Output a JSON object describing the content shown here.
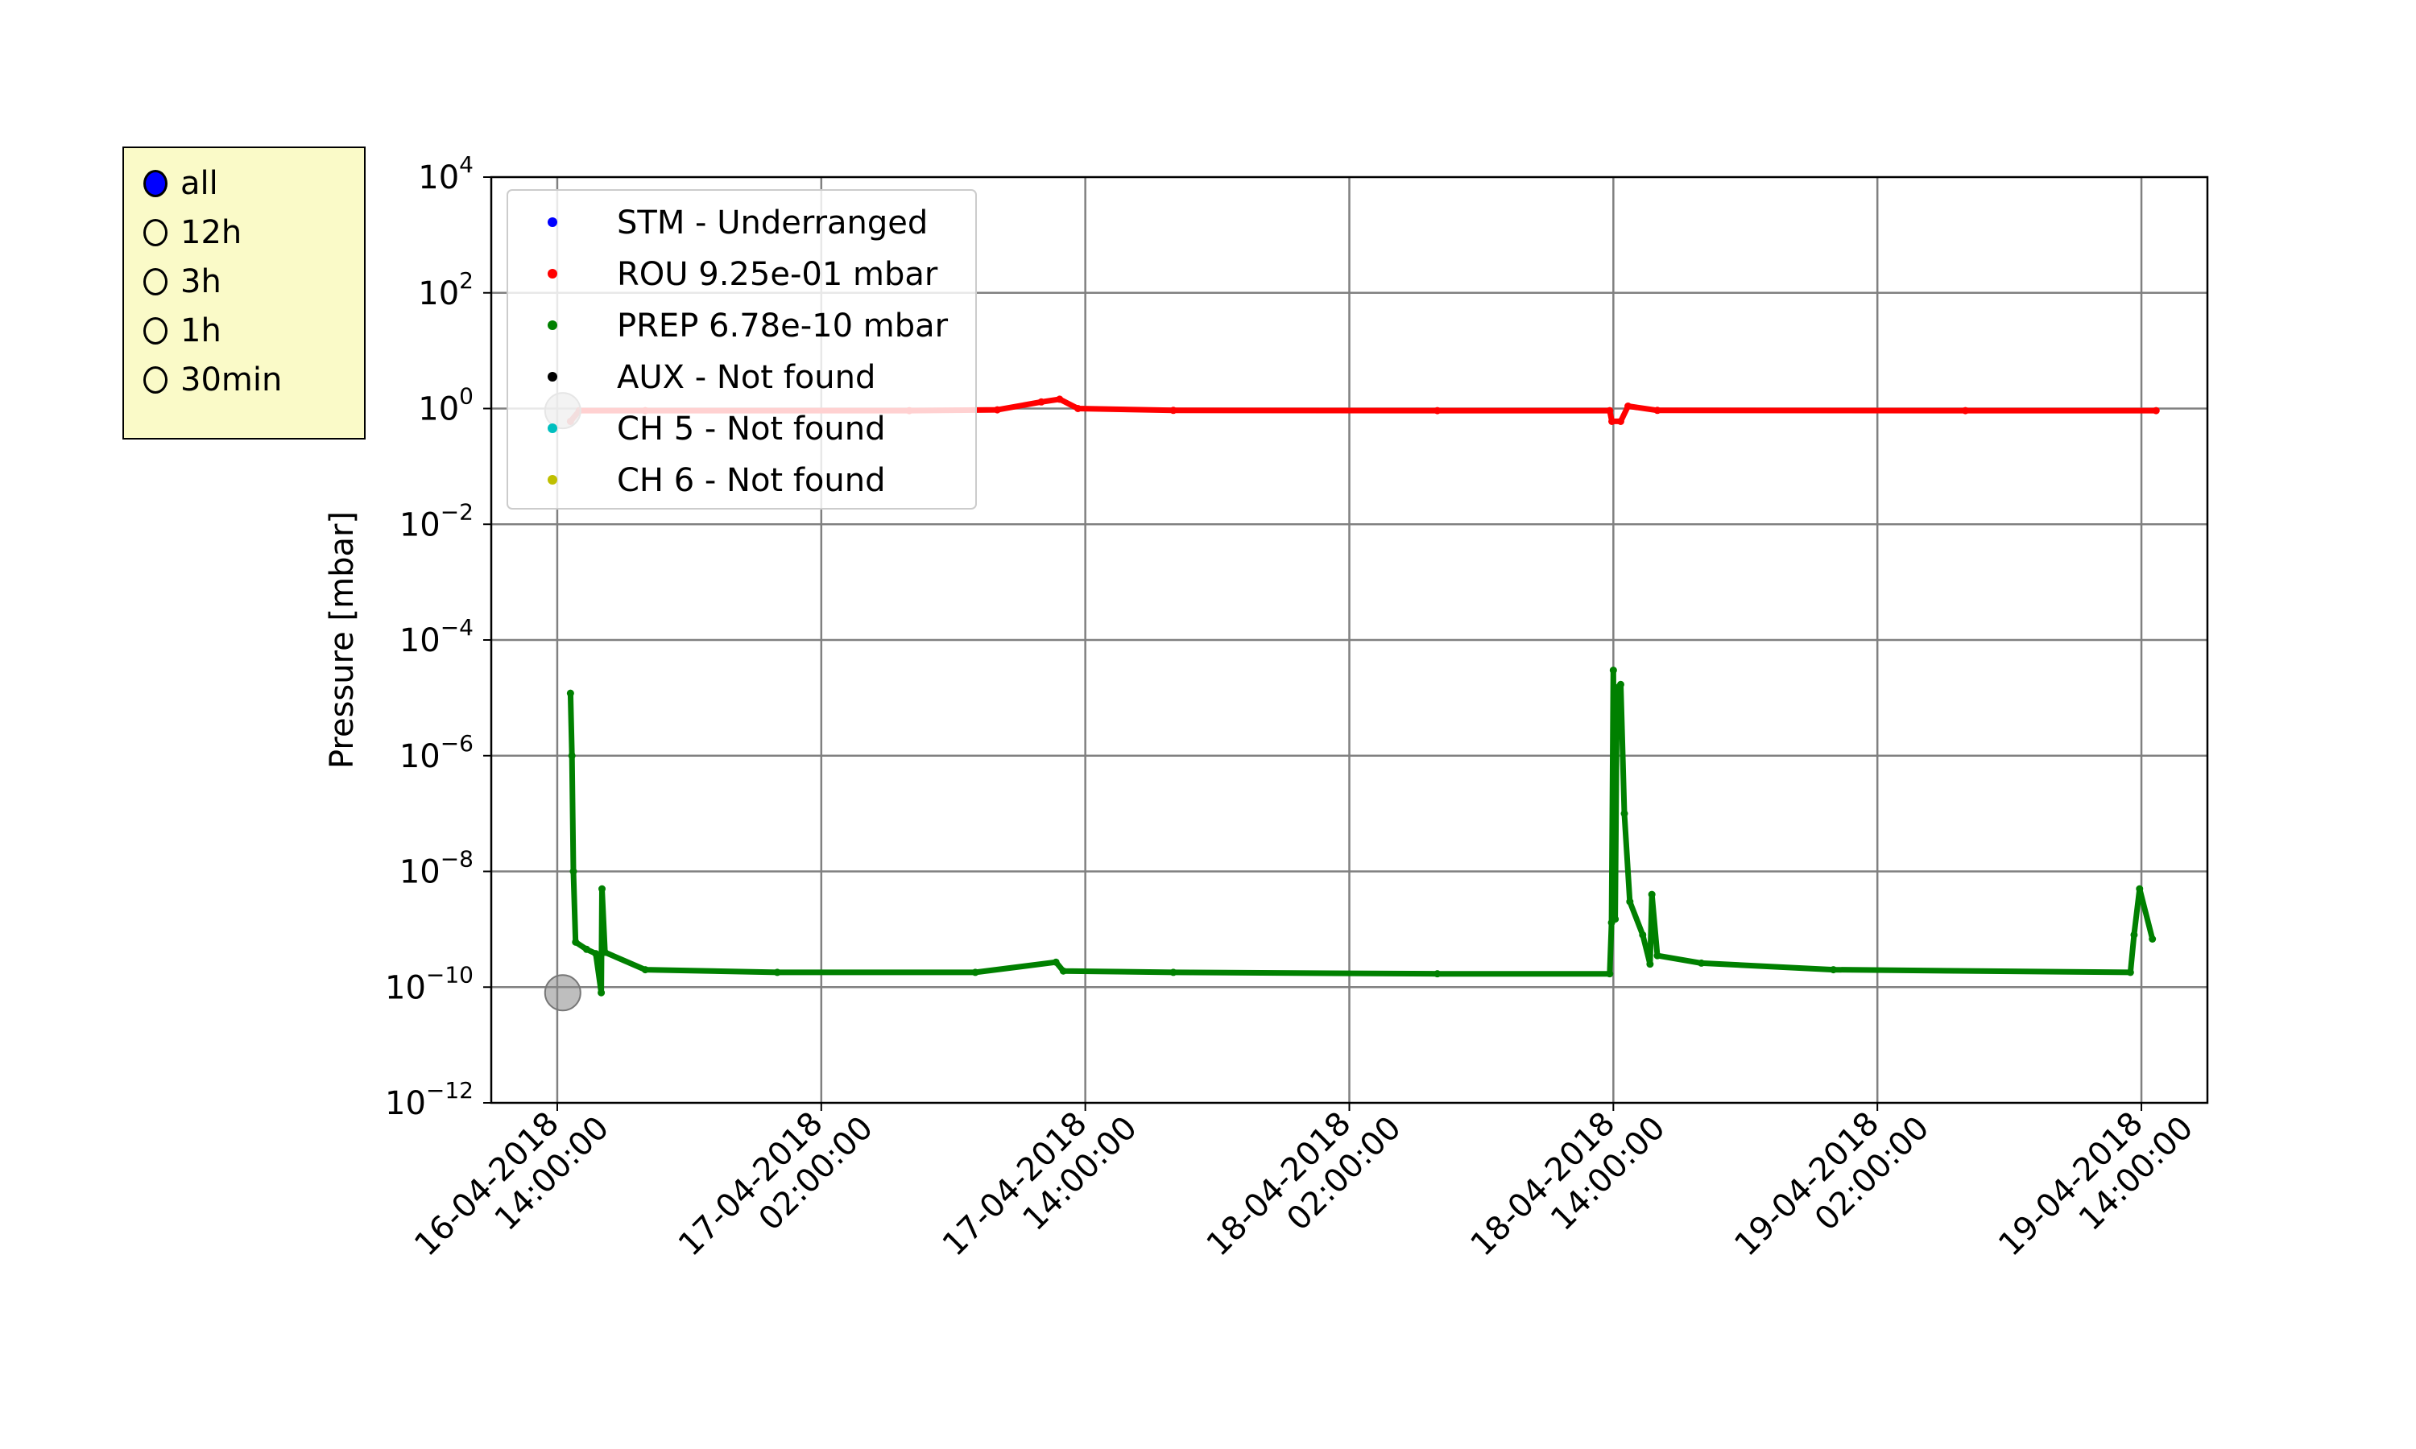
{
  "radio": {
    "options": [
      "all",
      "12h",
      "3h",
      "1h",
      "30min"
    ],
    "selected_index": 0,
    "selected_color": "#0000ff"
  },
  "chart_data": {
    "type": "scatter",
    "ylabel": "Pressure [mbar]",
    "yscale": "log",
    "ylim_exponents": [
      -12,
      4
    ],
    "ytick_exponents": [
      -12,
      -10,
      -8,
      -6,
      -4,
      -2,
      0,
      2,
      4
    ],
    "xlim": [
      "2018-04-16 11:00",
      "2018-04-19 17:00"
    ],
    "xticks": [
      {
        "value": "2018-04-16 14:00",
        "date": "16-04-2018",
        "time": "14:00:00"
      },
      {
        "value": "2018-04-17 02:00",
        "date": "17-04-2018",
        "time": "02:00:00"
      },
      {
        "value": "2018-04-17 14:00",
        "date": "17-04-2018",
        "time": "14:00:00"
      },
      {
        "value": "2018-04-18 02:00",
        "date": "18-04-2018",
        "time": "02:00:00"
      },
      {
        "value": "2018-04-18 14:00",
        "date": "18-04-2018",
        "time": "14:00:00"
      },
      {
        "value": "2018-04-19 02:00",
        "date": "19-04-2018",
        "time": "02:00:00"
      },
      {
        "value": "2018-04-19 14:00",
        "date": "19-04-2018",
        "time": "14:00:00"
      }
    ],
    "grid": true,
    "legend_position": "top-left",
    "series": [
      {
        "name": "STM  - Underranged",
        "color": "#0000ff",
        "points": []
      },
      {
        "name": "ROU  9.25e-01 mbar",
        "color": "#ff0000",
        "points": [
          [
            "2018-04-16 14:36",
            0.6
          ],
          [
            "2018-04-16 15:00",
            0.92
          ],
          [
            "2018-04-16 18:00",
            0.92
          ],
          [
            "2018-04-17 06:00",
            0.92
          ],
          [
            "2018-04-17 10:00",
            0.95
          ],
          [
            "2018-04-17 12:00",
            1.3
          ],
          [
            "2018-04-17 12:50",
            1.45
          ],
          [
            "2018-04-17 13:40",
            1.0
          ],
          [
            "2018-04-17 18:00",
            0.93
          ],
          [
            "2018-04-18 06:00",
            0.92
          ],
          [
            "2018-04-18 13:50",
            0.92
          ],
          [
            "2018-04-18 13:56",
            0.6
          ],
          [
            "2018-04-18 14:20",
            0.6
          ],
          [
            "2018-04-18 14:40",
            1.1
          ],
          [
            "2018-04-18 16:00",
            0.93
          ],
          [
            "2018-04-19 06:00",
            0.92
          ],
          [
            "2018-04-19 14:40",
            0.92
          ]
        ]
      },
      {
        "name": "PREP 6.78e-10 mbar",
        "color": "#008000",
        "points": [
          [
            "2018-04-16 14:36",
            1.2e-05
          ],
          [
            "2018-04-16 14:40",
            1e-06
          ],
          [
            "2018-04-16 14:44",
            1e-08
          ],
          [
            "2018-04-16 14:50",
            6e-10
          ],
          [
            "2018-04-16 15:20",
            4.5e-10
          ],
          [
            "2018-04-16 15:45",
            3.8e-10
          ],
          [
            "2018-04-16 16:00",
            8e-11
          ],
          [
            "2018-04-16 16:02",
            5e-09
          ],
          [
            "2018-04-16 16:10",
            4e-10
          ],
          [
            "2018-04-16 18:00",
            2e-10
          ],
          [
            "2018-04-17 00:00",
            1.8e-10
          ],
          [
            "2018-04-17 09:00",
            1.8e-10
          ],
          [
            "2018-04-17 12:40",
            2.7e-10
          ],
          [
            "2018-04-17 13:00",
            1.9e-10
          ],
          [
            "2018-04-17 18:00",
            1.8e-10
          ],
          [
            "2018-04-18 06:00",
            1.7e-10
          ],
          [
            "2018-04-18 13:50",
            1.7e-10
          ],
          [
            "2018-04-18 13:55",
            1.3e-09
          ],
          [
            "2018-04-18 14:00",
            3e-05
          ],
          [
            "2018-04-18 14:05",
            1.5e-09
          ],
          [
            "2018-04-18 14:10",
            1.5e-05
          ],
          [
            "2018-04-18 14:20",
            1.7e-05
          ],
          [
            "2018-04-18 14:30",
            1e-07
          ],
          [
            "2018-04-18 14:45",
            3e-09
          ],
          [
            "2018-04-18 15:20",
            8e-10
          ],
          [
            "2018-04-18 15:40",
            2.5e-10
          ],
          [
            "2018-04-18 15:45",
            4e-09
          ],
          [
            "2018-04-18 16:00",
            3.5e-10
          ],
          [
            "2018-04-18 18:00",
            2.6e-10
          ],
          [
            "2018-04-19 00:00",
            2e-10
          ],
          [
            "2018-04-19 13:30",
            1.8e-10
          ],
          [
            "2018-04-19 13:40",
            8e-10
          ],
          [
            "2018-04-19 13:55",
            5e-09
          ],
          [
            "2018-04-19 14:30",
            6.78e-10
          ]
        ]
      },
      {
        "name": "AUX  - Not found",
        "color": "#000000",
        "points": []
      },
      {
        "name": "CH 5 - Not found",
        "color": "#00bfbf",
        "points": []
      },
      {
        "name": "CH 6 - Not found",
        "color": "#bfbf00",
        "points": []
      }
    ],
    "cursor_markers": [
      {
        "x": "2018-04-16 14:15",
        "y": 0.92
      },
      {
        "x": "2018-04-16 14:15",
        "y": 8e-11
      }
    ]
  }
}
